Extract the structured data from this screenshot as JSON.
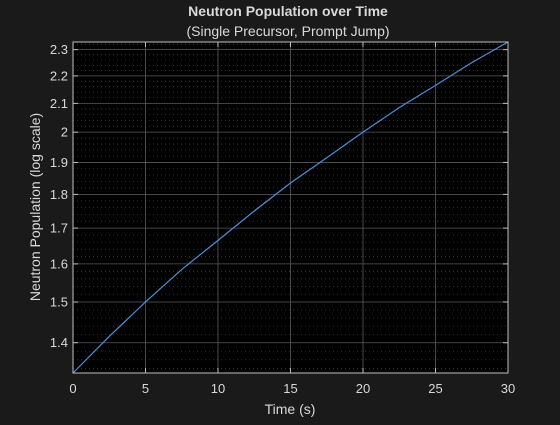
{
  "chart_data": {
    "type": "line",
    "title": "Neutron Population over Time",
    "subtitle": "(Single Precursor, Prompt Jump)",
    "xlabel": "Time (s)",
    "ylabel": "Neutron Population (log scale)",
    "xlim": [
      0,
      30
    ],
    "ylim": [
      1.33,
      2.33
    ],
    "yscale": "log",
    "grid": true,
    "minor_grid": true,
    "x_ticks": [
      0,
      5,
      10,
      15,
      20,
      25,
      30
    ],
    "x_tick_labels": [
      "0",
      "5",
      "10",
      "15",
      "20",
      "25",
      "30"
    ],
    "y_ticks": [
      1.4,
      1.5,
      1.6,
      1.7,
      1.8,
      1.9,
      2.0,
      2.1,
      2.2,
      2.3
    ],
    "y_tick_labels": [
      "1.4",
      "1.5",
      "1.6",
      "1.7",
      "1.8",
      "1.9",
      "2",
      "2.1",
      "2.2",
      "2.3"
    ],
    "y_minor_ticks": [
      1.34,
      1.36,
      1.38,
      1.42,
      1.44,
      1.46,
      1.48,
      1.52,
      1.54,
      1.56,
      1.58,
      1.62,
      1.64,
      1.66,
      1.68,
      1.72,
      1.74,
      1.76,
      1.78,
      1.82,
      1.84,
      1.86,
      1.88,
      1.92,
      1.94,
      1.96,
      1.98,
      2.02,
      2.04,
      2.06,
      2.08,
      2.12,
      2.14,
      2.16,
      2.18,
      2.22,
      2.24,
      2.26,
      2.28,
      2.32
    ],
    "series": [
      {
        "color": "#4a90d9",
        "x": [
          0,
          2.5,
          5,
          7.5,
          10,
          12.5,
          15,
          17.5,
          20,
          22.5,
          25,
          27.5,
          30
        ],
        "y": [
          1.33,
          1.415,
          1.5,
          1.585,
          1.665,
          1.75,
          1.835,
          1.915,
          2.0,
          2.085,
          2.165,
          2.25,
          2.33
        ]
      }
    ]
  },
  "colors": {
    "figure_bg": "#1a1a1a",
    "axes_bg": "#000000",
    "text": "#d9d9d9",
    "grid_major": "#5a5a5a",
    "grid_minor": "#3c3c3c"
  }
}
